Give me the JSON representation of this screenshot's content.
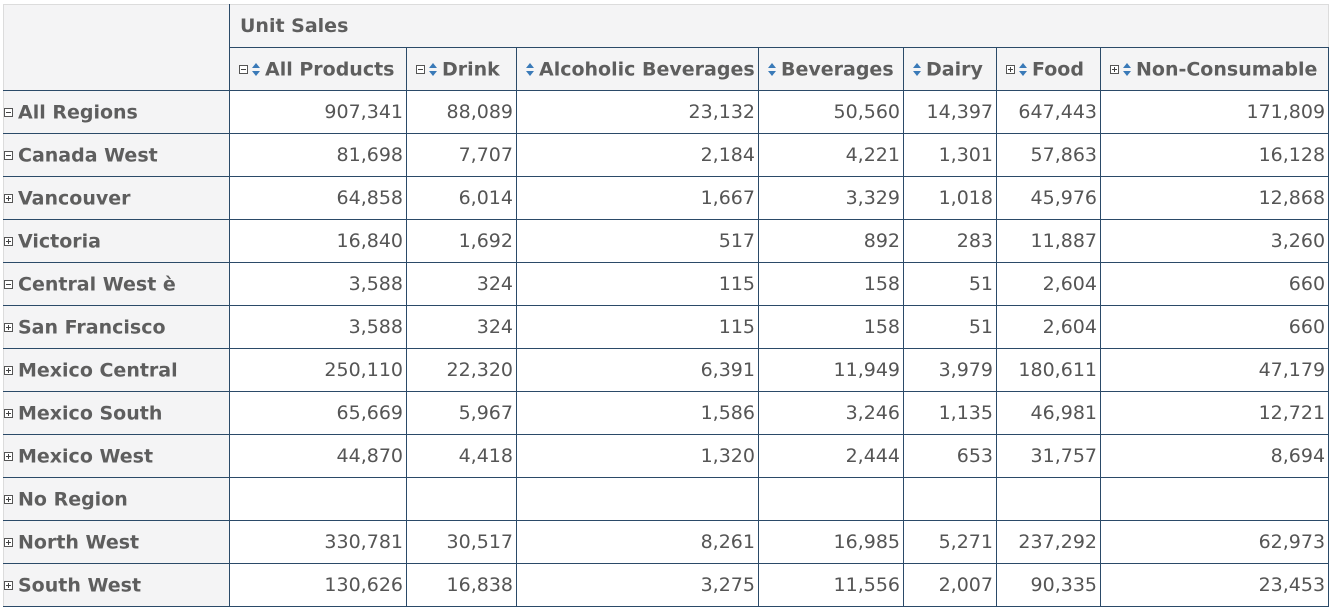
{
  "measure_title": "Unit Sales",
  "columns": [
    {
      "label": "All Products",
      "expander": "minus"
    },
    {
      "label": "Drink",
      "expander": "minus"
    },
    {
      "label": "Alcoholic Beverages",
      "expander": null
    },
    {
      "label": "Beverages",
      "expander": null
    },
    {
      "label": "Dairy",
      "expander": null
    },
    {
      "label": "Food",
      "expander": "plus"
    },
    {
      "label": "Non-Consumable",
      "expander": "plus"
    }
  ],
  "rows": [
    {
      "label": "All Regions",
      "level": 0,
      "expander": "minus",
      "values": [
        "907,341",
        "88,089",
        "23,132",
        "50,560",
        "14,397",
        "647,443",
        "171,809"
      ]
    },
    {
      "label": "Canada West",
      "level": 1,
      "expander": "minus",
      "values": [
        "81,698",
        "7,707",
        "2,184",
        "4,221",
        "1,301",
        "57,863",
        "16,128"
      ]
    },
    {
      "label": "Vancouver",
      "level": 2,
      "expander": "plus",
      "values": [
        "64,858",
        "6,014",
        "1,667",
        "3,329",
        "1,018",
        "45,976",
        "12,868"
      ]
    },
    {
      "label": "Victoria",
      "level": 2,
      "expander": "plus",
      "values": [
        "16,840",
        "1,692",
        "517",
        "892",
        "283",
        "11,887",
        "3,260"
      ]
    },
    {
      "label": "Central West è",
      "level": 1,
      "expander": "minus",
      "values": [
        "3,588",
        "324",
        "115",
        "158",
        "51",
        "2,604",
        "660"
      ]
    },
    {
      "label": "San Francisco",
      "level": 2,
      "expander": "plus",
      "values": [
        "3,588",
        "324",
        "115",
        "158",
        "51",
        "2,604",
        "660"
      ]
    },
    {
      "label": "Mexico Central",
      "level": 1,
      "expander": "plus",
      "values": [
        "250,110",
        "22,320",
        "6,391",
        "11,949",
        "3,979",
        "180,611",
        "47,179"
      ]
    },
    {
      "label": "Mexico South",
      "level": 1,
      "expander": "plus",
      "values": [
        "65,669",
        "5,967",
        "1,586",
        "3,246",
        "1,135",
        "46,981",
        "12,721"
      ]
    },
    {
      "label": "Mexico West",
      "level": 1,
      "expander": "plus",
      "values": [
        "44,870",
        "4,418",
        "1,320",
        "2,444",
        "653",
        "31,757",
        "8,694"
      ]
    },
    {
      "label": "No Region",
      "level": 1,
      "expander": "plus",
      "values": [
        "",
        "",
        "",
        "",
        "",
        "",
        ""
      ]
    },
    {
      "label": "North West",
      "level": 1,
      "expander": "plus",
      "values": [
        "330,781",
        "30,517",
        "8,261",
        "16,985",
        "5,271",
        "237,292",
        "62,973"
      ]
    },
    {
      "label": "South West",
      "level": 1,
      "expander": "plus",
      "values": [
        "130,626",
        "16,838",
        "3,275",
        "11,556",
        "2,007",
        "90,335",
        "23,453"
      ]
    }
  ],
  "icons": {
    "expand": "plus-box-icon",
    "collapse": "minus-box-icon",
    "sort": "sort-arrows-icon"
  },
  "colors": {
    "grid_line": "#2b4a68",
    "header_bg": "#f4f4f5",
    "header_text": "#5e5e5e",
    "sort_arrow": "#3a7ab8"
  }
}
